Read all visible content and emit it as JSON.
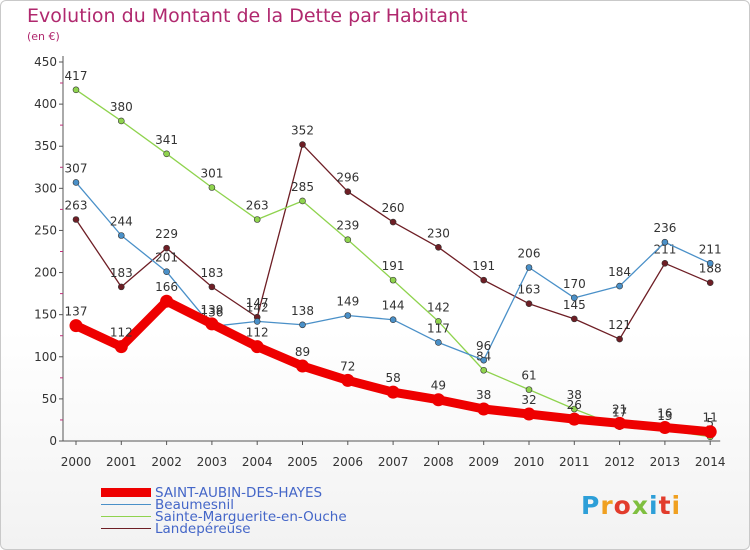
{
  "title": "Evolution du Montant de la Dette par Habitant",
  "subtitle": "(en €)",
  "logo_text": "Proxiti",
  "chart_data": {
    "type": "line",
    "x": [
      "2000",
      "2001",
      "2002",
      "2003",
      "2004",
      "2005",
      "2006",
      "2007",
      "2008",
      "2009",
      "2010",
      "2011",
      "2012",
      "2013",
      "2014"
    ],
    "ylim": [
      0,
      450
    ],
    "yticks": [
      "0",
      "50",
      "100",
      "150",
      "200",
      "250",
      "300",
      "350",
      "400",
      "450"
    ],
    "grid": false,
    "legend_position": "bottom-left",
    "series": [
      {
        "name": "Landepéreuse",
        "color": "#6e1e25",
        "values": [
          263,
          183,
          229,
          183,
          147,
          352,
          296,
          260,
          230,
          191,
          163,
          145,
          121,
          211,
          188
        ]
      },
      {
        "name": "Sainte-Marguerite-en-Ouche",
        "color": "#8fd34e",
        "values": [
          417,
          380,
          341,
          301,
          263,
          285,
          239,
          191,
          142,
          84,
          61,
          38,
          17,
          13,
          5
        ]
      },
      {
        "name": "Beaumesnil",
        "color": "#4a90c8",
        "values": [
          307,
          244,
          201,
          136,
          142,
          138,
          149,
          144,
          117,
          96,
          206,
          170,
          184,
          236,
          211
        ]
      },
      {
        "name": "SAINT-AUBIN-DES-HAYES",
        "color": "#ee0000",
        "values": [
          137,
          112,
          166,
          139,
          112,
          89,
          72,
          58,
          49,
          38,
          32,
          26,
          21,
          16,
          11
        ]
      }
    ]
  },
  "legend": [
    {
      "label": "SAINT-AUBIN-DES-HAYES",
      "color": "#ee0000"
    },
    {
      "label": "Beaumesnil",
      "color": "#4a90c8"
    },
    {
      "label": "Sainte-Marguerite-en-Ouche",
      "color": "#8fd34e"
    },
    {
      "label": "Landepéreuse",
      "color": "#6e1e25"
    }
  ]
}
